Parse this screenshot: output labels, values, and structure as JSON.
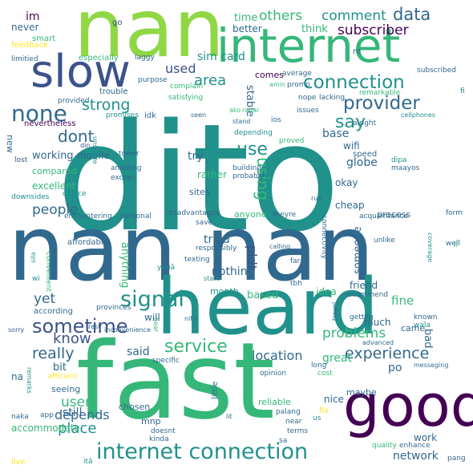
{
  "palette": {
    "dark_purple": "#440154",
    "indigo": "#3b528b",
    "blue": "#31688e",
    "teal": "#21918c",
    "green": "#35b779",
    "lime": "#8fd744",
    "yellow": "#fde725"
  },
  "words": [
    {
      "text": "dito",
      "color": "teal"
    },
    {
      "text": "nan nan",
      "color": "blue"
    },
    {
      "text": "heard",
      "color": "teal"
    },
    {
      "text": "fast",
      "color": "green"
    },
    {
      "text": "nan",
      "color": "lime"
    },
    {
      "text": "good",
      "color": "dark_purple"
    },
    {
      "text": "internet",
      "color": "green"
    },
    {
      "text": "slow",
      "color": "indigo"
    },
    {
      "text": "internet connection",
      "color": "teal"
    },
    {
      "text": "connection",
      "color": "teal"
    },
    {
      "text": "provider",
      "color": "blue"
    },
    {
      "text": "none",
      "color": "blue"
    },
    {
      "text": "sometime",
      "color": "indigo"
    },
    {
      "text": "signal",
      "color": "teal"
    },
    {
      "text": "service",
      "color": "green"
    },
    {
      "text": "experience",
      "color": "blue"
    },
    {
      "text": "others",
      "color": "green"
    },
    {
      "text": "comment",
      "color": "teal"
    },
    {
      "text": "data",
      "color": "blue"
    },
    {
      "text": "subscriber",
      "color": "dark_purple"
    },
    {
      "text": "strong",
      "color": "teal"
    },
    {
      "text": "dont",
      "color": "blue"
    },
    {
      "text": "use",
      "color": "teal"
    },
    {
      "text": "say",
      "color": "teal"
    },
    {
      "text": "area",
      "color": "teal"
    },
    {
      "text": "using",
      "color": "green"
    },
    {
      "text": "people",
      "color": "blue"
    },
    {
      "text": "know",
      "color": "indigo"
    },
    {
      "text": "really",
      "color": "blue"
    },
    {
      "text": "yet",
      "color": "blue"
    },
    {
      "text": "place",
      "color": "teal"
    },
    {
      "text": "user",
      "color": "green"
    },
    {
      "text": "depends",
      "color": "blue"
    },
    {
      "text": "problems",
      "color": "green"
    },
    {
      "text": "location",
      "color": "blue"
    },
    {
      "text": "network",
      "color": "blue"
    },
    {
      "text": "globe",
      "color": "blue"
    },
    {
      "text": "im",
      "color": "dark_purple"
    },
    {
      "text": "never",
      "color": "blue"
    },
    {
      "text": "smart",
      "color": "green"
    },
    {
      "text": "feedback",
      "color": "yellow"
    },
    {
      "text": "limitied",
      "color": "blue"
    },
    {
      "text": "especially",
      "color": "green"
    },
    {
      "text": "laggy",
      "color": "blue"
    },
    {
      "text": "go",
      "color": "indigo"
    },
    {
      "text": "time",
      "color": "green"
    },
    {
      "text": "better",
      "color": "blue"
    },
    {
      "text": "think",
      "color": "green"
    },
    {
      "text": "re",
      "color": "blue"
    },
    {
      "text": "used",
      "color": "indigo"
    },
    {
      "text": "purpose",
      "color": "blue"
    },
    {
      "text": "complain",
      "color": "green"
    },
    {
      "text": "satisfying",
      "color": "green"
    },
    {
      "text": "trouble",
      "color": "blue"
    },
    {
      "text": "provided",
      "color": "blue"
    },
    {
      "text": "promises",
      "color": "teal"
    },
    {
      "text": "nevertheless",
      "color": "dark_purple"
    },
    {
      "text": "promo",
      "color": "blue"
    },
    {
      "text": "lacking",
      "color": "blue"
    },
    {
      "text": "remarkable",
      "color": "green"
    },
    {
      "text": "nope",
      "color": "blue"
    },
    {
      "text": "subscribed",
      "color": "blue"
    },
    {
      "text": "comes",
      "color": "dark_purple"
    },
    {
      "text": "average",
      "color": "blue"
    },
    {
      "text": "amin",
      "color": "green"
    },
    {
      "text": "base",
      "color": "blue"
    },
    {
      "text": "stable",
      "color": "blue"
    },
    {
      "text": "issues",
      "color": "blue"
    },
    {
      "text": "alright",
      "color": "blue"
    },
    {
      "text": "cellphones",
      "color": "teal"
    },
    {
      "text": "sim card",
      "color": "teal"
    },
    {
      "text": "idk",
      "color": "blue"
    },
    {
      "text": "seen",
      "color": "blue"
    },
    {
      "text": "ako",
      "color": "green"
    },
    {
      "text": "radar",
      "color": "green"
    },
    {
      "text": "stand",
      "color": "blue"
    },
    {
      "text": "ios",
      "color": "blue"
    },
    {
      "text": "proved",
      "color": "green"
    },
    {
      "text": "depending",
      "color": "teal"
    },
    {
      "text": "wifi",
      "color": "blue"
    },
    {
      "text": "speed",
      "color": "blue"
    },
    {
      "text": "new",
      "color": "blue"
    },
    {
      "text": "working",
      "color": "blue"
    },
    {
      "text": "compared",
      "color": "green"
    },
    {
      "text": "excellent",
      "color": "green"
    },
    {
      "text": "downsides",
      "color": "teal"
    },
    {
      "text": "device",
      "color": "teal"
    },
    {
      "text": "encountering",
      "color": "blue"
    },
    {
      "text": "personal",
      "color": "blue"
    },
    {
      "text": "disadvantages",
      "color": "blue"
    },
    {
      "text": "except",
      "color": "blue"
    },
    {
      "text": "amazing",
      "color": "blue"
    },
    {
      "text": "building",
      "color": "blue"
    },
    {
      "text": "probably",
      "color": "blue"
    },
    {
      "text": "dipa",
      "color": "teal"
    },
    {
      "text": "maayos",
      "color": "blue"
    },
    {
      "text": "okay",
      "color": "blue"
    },
    {
      "text": "sites",
      "color": "blue"
    },
    {
      "text": "tower",
      "color": "blue"
    },
    {
      "text": "rather",
      "color": "green"
    },
    {
      "text": "try",
      "color": "blue"
    },
    {
      "text": "lost",
      "color": "indigo"
    },
    {
      "text": "din",
      "color": "indigo"
    },
    {
      "text": "mobile",
      "color": "blue"
    },
    {
      "text": "unstable",
      "color": "teal"
    },
    {
      "text": "cheap",
      "color": "blue"
    },
    {
      "text": "process",
      "color": "blue"
    },
    {
      "text": "form",
      "color": "blue"
    },
    {
      "text": "acquaintance",
      "color": "blue"
    },
    {
      "text": "connectivity",
      "color": "blue"
    },
    {
      "text": "theyre",
      "color": "blue"
    },
    {
      "text": "anyone",
      "color": "green"
    },
    {
      "text": "run",
      "color": "blue"
    },
    {
      "text": "coverage",
      "color": "teal"
    },
    {
      "text": "well",
      "color": "blue"
    },
    {
      "text": "unlike",
      "color": "blue"
    },
    {
      "text": "affordable",
      "color": "blue"
    },
    {
      "text": "save",
      "color": "blue"
    },
    {
      "text": "responsibly",
      "color": "blue"
    },
    {
      "text": "tried",
      "color": "blue"
    },
    {
      "text": "pldt",
      "color": "indigo"
    },
    {
      "text": "4g",
      "color": "blue"
    },
    {
      "text": "someone",
      "color": "blue"
    },
    {
      "text": "far",
      "color": "blue"
    },
    {
      "text": "ll",
      "color": "green"
    },
    {
      "text": "sila",
      "color": "teal"
    },
    {
      "text": "texting",
      "color": "blue"
    },
    {
      "text": "youâ",
      "color": "teal"
    },
    {
      "text": "convenient",
      "color": "green"
    },
    {
      "text": "anything",
      "color": "green"
    },
    {
      "text": "nothing",
      "color": "blue"
    },
    {
      "text": "wi",
      "color": "teal"
    },
    {
      "text": "state",
      "color": "teal"
    },
    {
      "text": "tbh",
      "color": "blue"
    },
    {
      "text": "idea",
      "color": "green"
    },
    {
      "text": "friend",
      "color": "blue"
    },
    {
      "text": "recommend",
      "color": "blue"
    },
    {
      "text": "fine",
      "color": "green"
    },
    {
      "text": "month",
      "color": "teal"
    },
    {
      "text": "based",
      "color": "green"
    },
    {
      "text": "sg",
      "color": "teal"
    },
    {
      "text": "provinces",
      "color": "blue"
    },
    {
      "text": "according",
      "color": "blue"
    },
    {
      "text": "will",
      "color": "blue"
    },
    {
      "text": "sorry",
      "color": "indigo"
    },
    {
      "text": "nito",
      "color": "blue"
    },
    {
      "text": "gettng",
      "color": "blue"
    },
    {
      "text": "known",
      "color": "blue"
    },
    {
      "text": "wala",
      "color": "teal"
    },
    {
      "text": "came",
      "color": "blue"
    },
    {
      "text": "much",
      "color": "blue"
    },
    {
      "text": "rest",
      "color": "blue"
    },
    {
      "text": "hear",
      "color": "green"
    },
    {
      "text": "travel",
      "color": "blue"
    },
    {
      "text": "inconvenience",
      "color": "blue"
    },
    {
      "text": "advanced",
      "color": "blue"
    },
    {
      "text": "bit",
      "color": "blue"
    },
    {
      "text": "said",
      "color": "blue"
    },
    {
      "text": "great",
      "color": "green"
    },
    {
      "text": "po",
      "color": "blue"
    },
    {
      "text": "bad",
      "color": "blue"
    },
    {
      "text": "specific",
      "color": "blue"
    },
    {
      "text": "long",
      "color": "blue"
    },
    {
      "text": "messeging",
      "color": "blue"
    },
    {
      "text": "na",
      "color": "blue"
    },
    {
      "text": "remarks",
      "color": "teal"
    },
    {
      "text": "efficient",
      "color": "yellow"
    },
    {
      "text": "opinion",
      "color": "blue"
    },
    {
      "text": "cost",
      "color": "green"
    },
    {
      "text": "seeing",
      "color": "blue"
    },
    {
      "text": "chosen",
      "color": "blue"
    },
    {
      "text": "little",
      "color": "blue"
    },
    {
      "text": "reliable",
      "color": "green"
    },
    {
      "text": "nice",
      "color": "blue"
    },
    {
      "text": "maybe",
      "color": "blue"
    },
    {
      "text": "still",
      "color": "blue"
    },
    {
      "text": "naka",
      "color": "blue"
    },
    {
      "text": "app",
      "color": "blue"
    },
    {
      "text": "accommodate",
      "color": "green"
    },
    {
      "text": "mnp",
      "color": "blue"
    },
    {
      "text": "itâ",
      "color": "teal"
    },
    {
      "text": "doesnt",
      "color": "blue"
    },
    {
      "text": "palang",
      "color": "blue"
    },
    {
      "text": "fix",
      "color": "yellow"
    },
    {
      "text": "near",
      "color": "blue"
    },
    {
      "text": "terms",
      "color": "blue"
    },
    {
      "text": "us",
      "color": "teal"
    },
    {
      "text": "work",
      "color": "blue"
    },
    {
      "text": "kinda",
      "color": "blue"
    },
    {
      "text": "quality",
      "color": "green"
    },
    {
      "text": "enhance",
      "color": "blue"
    },
    {
      "text": "sa",
      "color": "blue"
    },
    {
      "text": "pang",
      "color": "blue"
    },
    {
      "text": "live",
      "color": "yellow"
    },
    {
      "text": "calling",
      "color": "blue"
    },
    {
      "text": "lit",
      "color": "blue"
    },
    {
      "text": "fi",
      "color": "teal"
    }
  ]
}
